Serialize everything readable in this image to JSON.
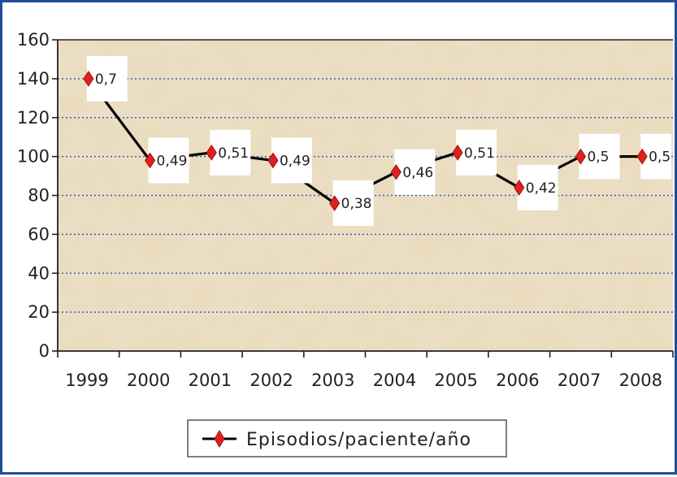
{
  "chart_data": {
    "type": "line",
    "categories": [
      "1999",
      "2000",
      "2001",
      "2002",
      "2003",
      "2004",
      "2005",
      "2006",
      "2007",
      "2008"
    ],
    "series": [
      {
        "name": "Episodios/paciente/año",
        "values": [
          140,
          98,
          102,
          98,
          76,
          92,
          102,
          84,
          100,
          100
        ],
        "labels": [
          "0,7",
          "0,49",
          "0,51",
          "0,49",
          "0,38",
          "0,46",
          "0,51",
          "0,42",
          "0,5",
          "0,5"
        ]
      }
    ],
    "x_tick_labels": [
      "1999",
      "2000",
      "2001",
      "2002",
      "2003",
      "2004",
      "2005",
      "2006",
      "2007",
      "2008"
    ],
    "y_ticks": [
      0,
      20,
      40,
      60,
      80,
      100,
      120,
      140,
      160
    ],
    "ylim": [
      0,
      160
    ],
    "title": "",
    "xlabel": "",
    "ylabel": "",
    "grid": "horizontal dotted",
    "legend_position": "bottom-center",
    "colors": {
      "line": "#000000",
      "marker": "#e02020",
      "gridline": "#3a5fc8",
      "plot_background": "#e6d5b4",
      "frame": "#1f4e9c"
    }
  }
}
